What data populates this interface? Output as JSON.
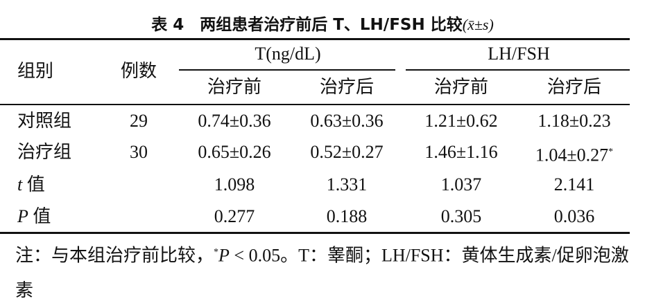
{
  "title": {
    "number": "表 4",
    "text": "两组患者治疗前后 T、LH/FSH 比较",
    "stat": "(x̄±s)"
  },
  "table": {
    "header": {
      "group": "组别",
      "count": "例数",
      "t_group": "T(ng/dL)",
      "lh_group": "LH/FSH",
      "sub": [
        "治疗前",
        "治疗后",
        "治疗前",
        "治疗后"
      ]
    },
    "rows": [
      {
        "label": "对照组",
        "count": "29",
        "cells": [
          "0.74±0.36",
          "0.63±0.36",
          "1.21±0.62",
          "1.18±0.23"
        ]
      },
      {
        "label": "治疗组",
        "count": "30",
        "cells": [
          "0.65±0.26",
          "0.52±0.27",
          "1.46±1.16",
          "1.04±0.27"
        ],
        "mark": "*"
      },
      {
        "label_italic": "t",
        "label": "值",
        "cells": [
          "1.098",
          "1.331",
          "1.037",
          "2.141"
        ]
      },
      {
        "label_italic": "P",
        "label": "值",
        "cells": [
          "0.277",
          "0.188",
          "0.305",
          "0.036"
        ]
      }
    ]
  },
  "note": {
    "lead": "注：与本组治疗前比较，",
    "mark": "*",
    "italic": "P",
    "rest": " < 0.05。T：睾酮；LH/FSH：黄体生成素/促卵泡激素"
  }
}
